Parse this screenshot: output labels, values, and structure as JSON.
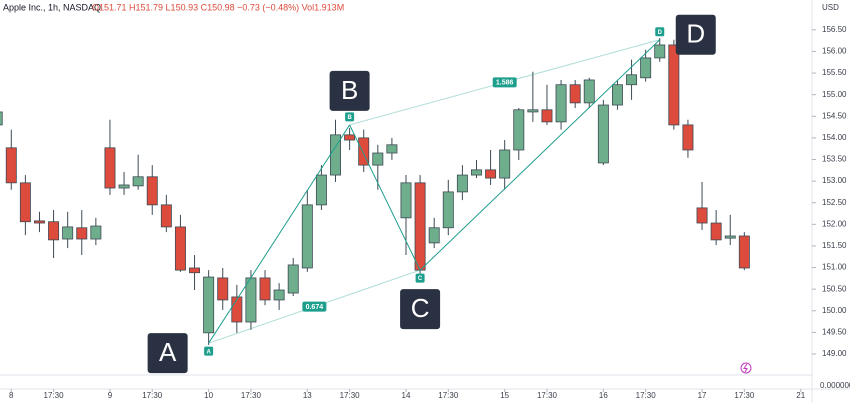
{
  "chart_data": {
    "type": "candlestick",
    "title": "Apple Inc., 1h, NASDAQ",
    "subtitle": "O151.71 H151.79 L150.93 C150.98 −0.73 (−0.48%) Vol1.913M",
    "currency": "USD",
    "volume_label": "0.000000",
    "up_color": "#6fae8c",
    "down_color": "#dc4b3c",
    "pattern_color": "#1e9e8c",
    "grid": false,
    "xlim": [
      0.2,
      57.8
    ],
    "xticks": [
      {
        "value": 1,
        "label": "8"
      },
      {
        "value": 4,
        "label": "17:30"
      },
      {
        "value": 8,
        "label": "9"
      },
      {
        "value": 11,
        "label": "17:30"
      },
      {
        "value": 15,
        "label": "10"
      },
      {
        "value": 18,
        "label": "17:30"
      },
      {
        "value": 22,
        "label": "13"
      },
      {
        "value": 25,
        "label": "17:30"
      },
      {
        "value": 29,
        "label": "14"
      },
      {
        "value": 32,
        "label": "17:30"
      },
      {
        "value": 36,
        "label": "15"
      },
      {
        "value": 39,
        "label": "17:30"
      },
      {
        "value": 43,
        "label": "16"
      },
      {
        "value": 46,
        "label": "17:30"
      },
      {
        "value": 50,
        "label": "17"
      },
      {
        "value": 53,
        "label": "17:30"
      },
      {
        "value": 57,
        "label": "21"
      }
    ],
    "ylim": [
      148.537,
      157.19
    ],
    "yticks": [
      {
        "value": 149,
        "label": "149.00"
      },
      {
        "value": 149.5,
        "label": "149.50"
      },
      {
        "value": 150,
        "label": "150.00"
      },
      {
        "value": 150.5,
        "label": "150.50"
      },
      {
        "value": 151,
        "label": "151.00"
      },
      {
        "value": 151.5,
        "label": "151.50"
      },
      {
        "value": 152,
        "label": "152.00"
      },
      {
        "value": 152.5,
        "label": "152.50"
      },
      {
        "value": 153,
        "label": "153.00"
      },
      {
        "value": 153.5,
        "label": "153.50"
      },
      {
        "value": 154,
        "label": "154.00"
      },
      {
        "value": 154.5,
        "label": "154.50"
      },
      {
        "value": 155,
        "label": "155.00"
      },
      {
        "value": 155.5,
        "label": "155.50"
      },
      {
        "value": 156,
        "label": "156.00"
      },
      {
        "value": 156.5,
        "label": "156.50"
      }
    ],
    "open": [
      154.3,
      153.77,
      152.96,
      152.08,
      152.06,
      151.66,
      151.92,
      151.66,
      153.77,
      152.84,
      152.89,
      153.1,
      152.45,
      151.94,
      150.99,
      149.49,
      150.76,
      150.32,
      149.74,
      150.76,
      150.25,
      150.41,
      150.99,
      152.45,
      153.14,
      154.07,
      154.0,
      153.37,
      153.65,
      152.15,
      152.96,
      151.57,
      151.92,
      152.75,
      153.14,
      153.26,
      153.07,
      153.72,
      154.6,
      154.65,
      154.37,
      155.23,
      154.81,
      153.42,
      154.76,
      155.23,
      155.39,
      155.85,
      156.15,
      154.3,
      152.38,
      152.03,
      151.68,
      151.73
    ],
    "high": [
      154.65,
      154.19,
      153.14,
      152.29,
      152.33,
      152.29,
      152.33,
      152.15,
      154.42,
      153.21,
      153.61,
      153.37,
      152.68,
      152.22,
      151.29,
      150.94,
      150.99,
      150.6,
      150.94,
      150.94,
      150.64,
      151.22,
      152.8,
      153.37,
      154.42,
      154.23,
      154.19,
      153.84,
      154.0,
      153.14,
      153.14,
      152.15,
      153.03,
      153.37,
      153.49,
      153.72,
      153.95,
      154.69,
      155.53,
      155.23,
      155.34,
      155.34,
      155.39,
      154.88,
      155.34,
      155.81,
      156.04,
      156.31,
      156.27,
      154.42,
      152.98,
      152.33,
      152.22,
      151.82
    ],
    "low": [
      154.0,
      152.8,
      151.75,
      151.82,
      151.22,
      151.45,
      151.29,
      151.52,
      152.68,
      152.68,
      152.8,
      152.22,
      151.82,
      150.9,
      150.48,
      149.21,
      150.02,
      149.49,
      149.56,
      150.13,
      150.02,
      150.34,
      150.9,
      152.33,
      152.98,
      153.72,
      153.21,
      152.8,
      153.49,
      151.29,
      150.83,
      151.45,
      151.75,
      152.56,
      153.07,
      152.91,
      152.8,
      153.49,
      154.37,
      154.3,
      154.19,
      154.69,
      154.69,
      153.37,
      154.65,
      154.88,
      155.3,
      155.76,
      154.19,
      153.54,
      151.87,
      151.52,
      151.52,
      150.94
    ],
    "close": [
      154.6,
      152.96,
      152.06,
      152.03,
      151.64,
      151.94,
      151.66,
      151.96,
      152.84,
      152.91,
      153.1,
      152.45,
      151.94,
      150.94,
      150.88,
      150.78,
      150.25,
      149.74,
      150.76,
      150.25,
      150.48,
      151.06,
      152.45,
      153.14,
      154.07,
      153.95,
      153.37,
      153.65,
      153.84,
      152.96,
      150.94,
      151.92,
      152.75,
      153.14,
      153.26,
      153.07,
      153.72,
      154.65,
      154.65,
      154.37,
      155.23,
      154.81,
      155.34,
      154.76,
      155.23,
      155.46,
      155.85,
      156.15,
      154.3,
      153.72,
      152.03,
      151.64,
      151.73,
      150.99
    ],
    "pattern": {
      "points": [
        {
          "label": "A",
          "x": 15,
          "y": 149.25
        },
        {
          "label": "B",
          "x": 25,
          "y": 154.3
        },
        {
          "label": "C",
          "x": 30,
          "y": 150.94
        },
        {
          "label": "D",
          "x": 47,
          "y": 156.27
        }
      ],
      "ratios": [
        {
          "from": 0,
          "to": 2,
          "value": 0.674
        },
        {
          "from": 1,
          "to": 3,
          "value": 1.586
        }
      ]
    }
  }
}
